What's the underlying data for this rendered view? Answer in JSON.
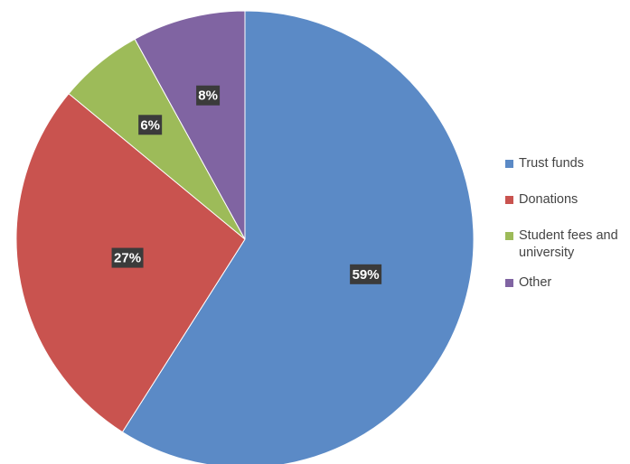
{
  "chart_data": {
    "type": "pie",
    "title": "",
    "categories": [
      "Trust funds",
      "Donations",
      "Student fees and university",
      "Other"
    ],
    "values": [
      59,
      27,
      6,
      8
    ],
    "data_labels": [
      "59%",
      "27%",
      "6%",
      "8%"
    ],
    "colors": [
      "#5b8ac6",
      "#c9534f",
      "#9dbb59",
      "#8064a2"
    ],
    "legend_position": "right",
    "start_angle": "12 o'clock",
    "direction": "clockwise"
  }
}
